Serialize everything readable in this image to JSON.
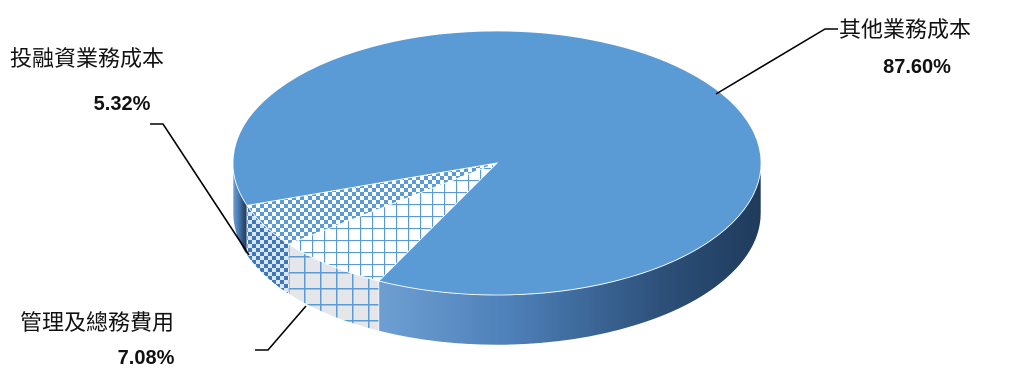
{
  "chart_data": {
    "type": "pie",
    "style": "3d",
    "slices": [
      {
        "label": "其他業務成本",
        "value": 87.6,
        "value_text": "87.60%",
        "color": "#5b9bd5",
        "pattern": "solid"
      },
      {
        "label": "投融資業務成本",
        "value": 5.32,
        "value_text": "5.32%",
        "color": "#5b9bd5",
        "pattern": "small-check"
      },
      {
        "label": "管理及總務費用",
        "value": 7.08,
        "value_text": "7.08%",
        "color": "#5b9bd5",
        "pattern": "grid"
      }
    ]
  }
}
